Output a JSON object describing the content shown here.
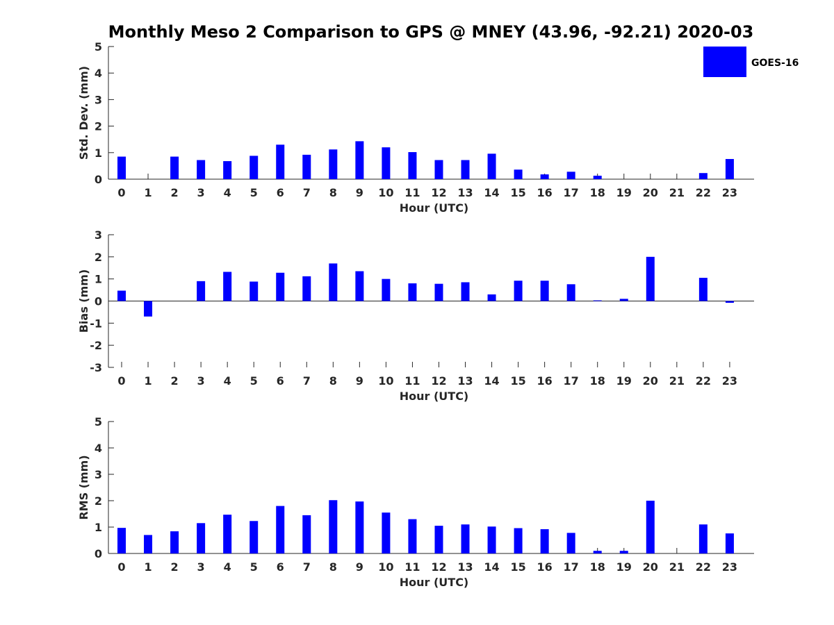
{
  "title": "Monthly Meso 2 Comparison to GPS @ MNEY (43.96, -92.21) 2020-03",
  "legend": {
    "label": "GOES-16",
    "color": "#0000ff"
  },
  "chart_data": [
    {
      "type": "bar",
      "xlabel": "Hour (UTC)",
      "ylabel": "Std. Dev. (mm)",
      "ylim": [
        0,
        5
      ],
      "yticks": [
        "0",
        "1",
        "2",
        "3",
        "4",
        "5"
      ],
      "categories": [
        "0",
        "1",
        "2",
        "3",
        "4",
        "5",
        "6",
        "7",
        "8",
        "9",
        "10",
        "11",
        "12",
        "13",
        "14",
        "15",
        "16",
        "17",
        "18",
        "19",
        "20",
        "21",
        "22",
        "23"
      ],
      "series": [
        {
          "name": "GOES-16",
          "values": [
            0.85,
            null,
            0.85,
            0.72,
            0.68,
            0.88,
            1.3,
            0.92,
            1.12,
            1.43,
            1.2,
            1.02,
            0.72,
            0.72,
            0.96,
            0.36,
            0.18,
            0.28,
            0.13,
            null,
            null,
            null,
            0.23,
            0.76
          ]
        }
      ]
    },
    {
      "type": "bar",
      "xlabel": "Hour (UTC)",
      "ylabel": "Bias (mm)",
      "ylim": [
        -3,
        3
      ],
      "yticks": [
        "-3",
        "-2",
        "-1",
        "0",
        "1",
        "2",
        "3"
      ],
      "categories": [
        "0",
        "1",
        "2",
        "3",
        "4",
        "5",
        "6",
        "7",
        "8",
        "9",
        "10",
        "11",
        "12",
        "13",
        "14",
        "15",
        "16",
        "17",
        "18",
        "19",
        "20",
        "21",
        "22",
        "23"
      ],
      "series": [
        {
          "name": "GOES-16",
          "values": [
            0.47,
            -0.7,
            null,
            0.9,
            1.32,
            0.88,
            1.28,
            1.12,
            1.7,
            1.35,
            1.0,
            0.8,
            0.78,
            0.85,
            0.3,
            0.92,
            0.92,
            0.76,
            0.03,
            0.1,
            2.0,
            null,
            1.05,
            -0.08
          ]
        }
      ]
    },
    {
      "type": "bar",
      "xlabel": "Hour (UTC)",
      "ylabel": "RMS (mm)",
      "ylim": [
        0,
        5
      ],
      "yticks": [
        "0",
        "1",
        "2",
        "3",
        "4",
        "5"
      ],
      "categories": [
        "0",
        "1",
        "2",
        "3",
        "4",
        "5",
        "6",
        "7",
        "8",
        "9",
        "10",
        "11",
        "12",
        "13",
        "14",
        "15",
        "16",
        "17",
        "18",
        "19",
        "20",
        "21",
        "22",
        "23"
      ],
      "series": [
        {
          "name": "GOES-16",
          "values": [
            0.97,
            0.7,
            0.84,
            1.15,
            1.47,
            1.23,
            1.8,
            1.45,
            2.02,
            1.97,
            1.55,
            1.3,
            1.05,
            1.1,
            1.02,
            0.96,
            0.92,
            0.78,
            0.1,
            0.1,
            2.0,
            null,
            1.1,
            0.76
          ]
        }
      ]
    }
  ]
}
